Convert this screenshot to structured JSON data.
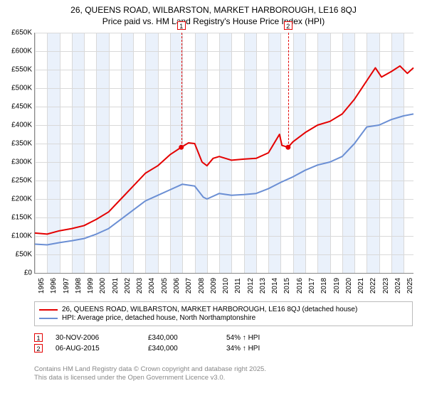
{
  "title": {
    "line1": "26, QUEENS ROAD, WILBARSTON, MARKET HARBOROUGH, LE16 8QJ",
    "line2": "Price paid vs. HM Land Registry's House Price Index (HPI)",
    "fontsize": 12
  },
  "chart": {
    "type": "line",
    "background_color": "#ffffff",
    "grid_color": "#d9d9d9",
    "band_color": "#eaf1fb",
    "x": {
      "min": 1995,
      "max": 2025.8,
      "tick_step": 1,
      "labels": [
        "1995",
        "1996",
        "1997",
        "1998",
        "1999",
        "2000",
        "2001",
        "2002",
        "2003",
        "2004",
        "2005",
        "2006",
        "2007",
        "2008",
        "2009",
        "2010",
        "2011",
        "2012",
        "2013",
        "2014",
        "2015",
        "2016",
        "2017",
        "2018",
        "2019",
        "2020",
        "2021",
        "2022",
        "2023",
        "2024",
        "2025"
      ]
    },
    "y": {
      "min": 0,
      "max": 650000,
      "tick_step": 50000,
      "labels": [
        "£0",
        "£50K",
        "£100K",
        "£150K",
        "£200K",
        "£250K",
        "£300K",
        "£350K",
        "£400K",
        "£450K",
        "£500K",
        "£550K",
        "£600K",
        "£650K"
      ]
    },
    "alternating_bands_start": 1995,
    "series": [
      {
        "key": "property",
        "label": "26, QUEENS ROAD, WILBARSTON, MARKET HARBOROUGH, LE16 8QJ (detached house)",
        "color": "#e40000",
        "line_width": 2,
        "points": [
          [
            1995,
            108000
          ],
          [
            1996,
            105000
          ],
          [
            1997,
            114000
          ],
          [
            1998,
            120000
          ],
          [
            1999,
            128000
          ],
          [
            2000,
            145000
          ],
          [
            2001,
            165000
          ],
          [
            2002,
            200000
          ],
          [
            2003,
            235000
          ],
          [
            2004,
            270000
          ],
          [
            2005,
            290000
          ],
          [
            2006,
            320000
          ],
          [
            2006.91,
            340000
          ],
          [
            2007.5,
            352000
          ],
          [
            2008,
            350000
          ],
          [
            2008.6,
            300000
          ],
          [
            2009,
            290000
          ],
          [
            2009.5,
            310000
          ],
          [
            2010,
            315000
          ],
          [
            2011,
            305000
          ],
          [
            2012,
            308000
          ],
          [
            2013,
            310000
          ],
          [
            2014,
            325000
          ],
          [
            2014.9,
            375000
          ],
          [
            2015.1,
            345000
          ],
          [
            2015.6,
            340000
          ],
          [
            2016,
            355000
          ],
          [
            2017,
            380000
          ],
          [
            2018,
            400000
          ],
          [
            2019,
            410000
          ],
          [
            2020,
            430000
          ],
          [
            2021,
            470000
          ],
          [
            2022,
            520000
          ],
          [
            2022.7,
            555000
          ],
          [
            2023.2,
            530000
          ],
          [
            2024,
            545000
          ],
          [
            2024.7,
            560000
          ],
          [
            2025.3,
            540000
          ],
          [
            2025.8,
            555000
          ]
        ]
      },
      {
        "key": "hpi",
        "label": "HPI: Average price, detached house, North Northamptonshire",
        "color": "#6b8fd4",
        "line_width": 2,
        "points": [
          [
            1995,
            78000
          ],
          [
            1996,
            76000
          ],
          [
            1997,
            82000
          ],
          [
            1998,
            87000
          ],
          [
            1999,
            93000
          ],
          [
            2000,
            105000
          ],
          [
            2001,
            120000
          ],
          [
            2002,
            145000
          ],
          [
            2003,
            170000
          ],
          [
            2004,
            195000
          ],
          [
            2005,
            210000
          ],
          [
            2006,
            225000
          ],
          [
            2007,
            240000
          ],
          [
            2008,
            235000
          ],
          [
            2008.7,
            205000
          ],
          [
            2009,
            200000
          ],
          [
            2010,
            215000
          ],
          [
            2011,
            210000
          ],
          [
            2012,
            212000
          ],
          [
            2013,
            215000
          ],
          [
            2014,
            228000
          ],
          [
            2015,
            245000
          ],
          [
            2016,
            260000
          ],
          [
            2017,
            278000
          ],
          [
            2018,
            292000
          ],
          [
            2019,
            300000
          ],
          [
            2020,
            315000
          ],
          [
            2021,
            350000
          ],
          [
            2022,
            395000
          ],
          [
            2023,
            400000
          ],
          [
            2024,
            415000
          ],
          [
            2025,
            425000
          ],
          [
            2025.8,
            430000
          ]
        ]
      }
    ],
    "sale_markers": [
      {
        "n": "1",
        "x": 2006.91,
        "y": 340000,
        "color": "#e40000"
      },
      {
        "n": "2",
        "x": 2015.6,
        "y": 340000,
        "color": "#e40000"
      }
    ]
  },
  "legend": {
    "border_color": "#bbbbbb",
    "items": [
      {
        "color": "#e40000",
        "label": "26, QUEENS ROAD, WILBARSTON, MARKET HARBOROUGH, LE16 8QJ (detached house)"
      },
      {
        "color": "#6b8fd4",
        "label": "HPI: Average price, detached house, North Northamptonshire"
      }
    ]
  },
  "sales": [
    {
      "n": "1",
      "color": "#e40000",
      "date": "30-NOV-2006",
      "price": "£340,000",
      "delta": "54% ↑ HPI"
    },
    {
      "n": "2",
      "color": "#e40000",
      "date": "06-AUG-2015",
      "price": "£340,000",
      "delta": "34% ↑ HPI"
    }
  ],
  "attribution": {
    "line1": "Contains HM Land Registry data © Crown copyright and database right 2025.",
    "line2": "This data is licensed under the Open Government Licence v3.0."
  }
}
